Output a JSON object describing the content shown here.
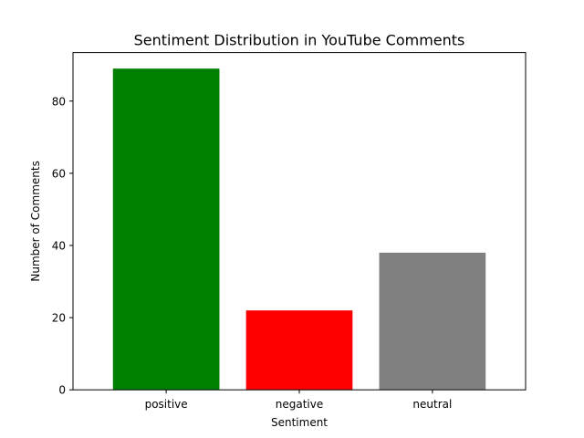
{
  "chart_data": {
    "type": "bar",
    "title": "Sentiment Distribution in YouTube Comments",
    "xlabel": "Sentiment",
    "ylabel": "Number of Comments",
    "categories": [
      "positive",
      "negative",
      "neutral"
    ],
    "values": [
      89,
      22,
      38
    ],
    "colors": [
      "#008000",
      "#ff0000",
      "#808080"
    ],
    "ylim": [
      0,
      93.45
    ],
    "yticks": [
      0,
      20,
      40,
      60,
      80
    ],
    "grid": false,
    "legend": "none"
  }
}
